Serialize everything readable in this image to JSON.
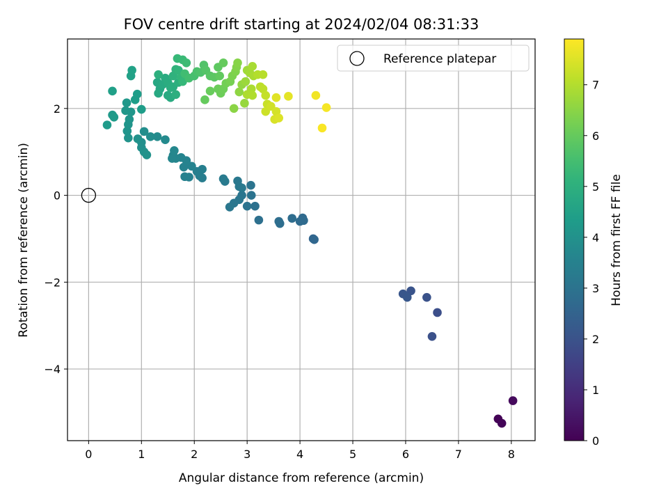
{
  "chart_data": {
    "type": "scatter",
    "title": "FOV centre drift starting at 2024/02/04 08:31:33",
    "xlabel": "Angular distance from reference (arcmin)",
    "ylabel": "Rotation from reference (arcmin)",
    "xlim": [
      -0.4,
      8.45
    ],
    "ylim": [
      -5.65,
      3.6
    ],
    "xticks": [
      0,
      1,
      2,
      3,
      4,
      5,
      6,
      7,
      8
    ],
    "xtick_labels": [
      "0",
      "1",
      "2",
      "3",
      "4",
      "5",
      "6",
      "7",
      "8"
    ],
    "yticks": [
      -4,
      -2,
      0,
      2
    ],
    "ytick_labels": [
      "−4",
      "−2",
      "0",
      "2"
    ],
    "grid": true,
    "legend": {
      "placement": "upper right",
      "entries": [
        "Reference platepar"
      ]
    },
    "reference_point": {
      "x": 0,
      "y": 0
    },
    "colorbar": {
      "label": "Hours from first FF file",
      "range": [
        0,
        7.9
      ],
      "ticks": [
        0,
        1,
        2,
        3,
        4,
        5,
        6,
        7
      ],
      "tick_labels": [
        "0",
        "1",
        "2",
        "3",
        "4",
        "5",
        "6",
        "7"
      ],
      "colormap": "viridis"
    },
    "points": [
      {
        "x": 7.75,
        "y": -5.15,
        "t": 0.05
      },
      {
        "x": 7.82,
        "y": -5.25,
        "t": 0.1
      },
      {
        "x": 8.03,
        "y": -4.73,
        "t": 0.2
      },
      {
        "x": 6.5,
        "y": -3.25,
        "t": 1.95
      },
      {
        "x": 6.6,
        "y": -2.7,
        "t": 1.9
      },
      {
        "x": 6.4,
        "y": -2.35,
        "t": 2.0
      },
      {
        "x": 6.1,
        "y": -2.2,
        "t": 2.05
      },
      {
        "x": 5.95,
        "y": -2.27,
        "t": 2.1
      },
      {
        "x": 6.03,
        "y": -2.35,
        "t": 2.15
      },
      {
        "x": 4.25,
        "y": -1.0,
        "t": 2.55
      },
      {
        "x": 4.27,
        "y": -1.02,
        "t": 2.6
      },
      {
        "x": 4.05,
        "y": -0.52,
        "t": 2.7
      },
      {
        "x": 4.07,
        "y": -0.58,
        "t": 2.72
      },
      {
        "x": 4.0,
        "y": -0.6,
        "t": 2.75
      },
      {
        "x": 3.85,
        "y": -0.53,
        "t": 2.8
      },
      {
        "x": 3.6,
        "y": -0.6,
        "t": 2.82
      },
      {
        "x": 3.62,
        "y": -0.65,
        "t": 2.85
      },
      {
        "x": 3.22,
        "y": -0.57,
        "t": 2.9
      },
      {
        "x": 3.15,
        "y": -0.25,
        "t": 2.95
      },
      {
        "x": 3.0,
        "y": -0.25,
        "t": 3.0
      },
      {
        "x": 3.08,
        "y": 0.0,
        "t": 3.02
      },
      {
        "x": 3.07,
        "y": 0.23,
        "t": 3.05
      },
      {
        "x": 2.9,
        "y": 0.0,
        "t": 3.08
      },
      {
        "x": 2.85,
        "y": -0.1,
        "t": 3.1
      },
      {
        "x": 2.75,
        "y": -0.18,
        "t": 3.12
      },
      {
        "x": 2.67,
        "y": -0.27,
        "t": 3.15
      },
      {
        "x": 2.82,
        "y": 0.33,
        "t": 3.18
      },
      {
        "x": 2.85,
        "y": 0.2,
        "t": 3.2
      },
      {
        "x": 2.9,
        "y": 0.17,
        "t": 3.22
      },
      {
        "x": 2.58,
        "y": 0.32,
        "t": 3.25
      },
      {
        "x": 2.55,
        "y": 0.38,
        "t": 3.28
      },
      {
        "x": 2.15,
        "y": 0.4,
        "t": 3.35
      },
      {
        "x": 2.1,
        "y": 0.45,
        "t": 3.38
      },
      {
        "x": 2.15,
        "y": 0.6,
        "t": 3.4
      },
      {
        "x": 2.05,
        "y": 0.55,
        "t": 3.42
      },
      {
        "x": 1.9,
        "y": 0.42,
        "t": 3.45
      },
      {
        "x": 1.82,
        "y": 0.43,
        "t": 3.48
      },
      {
        "x": 1.95,
        "y": 0.67,
        "t": 3.5
      },
      {
        "x": 1.8,
        "y": 0.65,
        "t": 3.52
      },
      {
        "x": 1.85,
        "y": 0.8,
        "t": 3.55
      },
      {
        "x": 1.75,
        "y": 0.87,
        "t": 3.58
      },
      {
        "x": 1.65,
        "y": 0.85,
        "t": 3.6
      },
      {
        "x": 1.6,
        "y": 0.92,
        "t": 3.62
      },
      {
        "x": 1.58,
        "y": 0.85,
        "t": 3.65
      },
      {
        "x": 1.62,
        "y": 1.03,
        "t": 3.68
      },
      {
        "x": 1.45,
        "y": 1.28,
        "t": 3.75
      },
      {
        "x": 1.3,
        "y": 1.35,
        "t": 3.8
      },
      {
        "x": 1.17,
        "y": 1.35,
        "t": 3.85
      },
      {
        "x": 1.05,
        "y": 1.47,
        "t": 3.9
      },
      {
        "x": 1.0,
        "y": 1.22,
        "t": 3.92
      },
      {
        "x": 1.0,
        "y": 1.1,
        "t": 3.95
      },
      {
        "x": 1.05,
        "y": 1.0,
        "t": 3.98
      },
      {
        "x": 1.1,
        "y": 0.93,
        "t": 4.0
      },
      {
        "x": 0.93,
        "y": 1.3,
        "t": 4.02
      },
      {
        "x": 0.75,
        "y": 1.32,
        "t": 4.05
      },
      {
        "x": 0.73,
        "y": 1.48,
        "t": 4.08
      },
      {
        "x": 0.75,
        "y": 1.63,
        "t": 4.1
      },
      {
        "x": 0.77,
        "y": 1.75,
        "t": 4.12
      },
      {
        "x": 0.8,
        "y": 1.92,
        "t": 4.15
      },
      {
        "x": 0.7,
        "y": 1.95,
        "t": 4.18
      },
      {
        "x": 0.72,
        "y": 2.13,
        "t": 4.2
      },
      {
        "x": 0.45,
        "y": 1.85,
        "t": 4.25
      },
      {
        "x": 0.48,
        "y": 1.8,
        "t": 4.28
      },
      {
        "x": 0.35,
        "y": 1.62,
        "t": 4.3
      },
      {
        "x": 1.0,
        "y": 1.98,
        "t": 4.35
      },
      {
        "x": 0.88,
        "y": 2.2,
        "t": 4.38
      },
      {
        "x": 0.92,
        "y": 2.33,
        "t": 4.4
      },
      {
        "x": 0.45,
        "y": 2.4,
        "t": 4.45
      },
      {
        "x": 0.8,
        "y": 2.75,
        "t": 4.5
      },
      {
        "x": 0.82,
        "y": 2.88,
        "t": 4.52
      },
      {
        "x": 1.3,
        "y": 2.6,
        "t": 4.7
      },
      {
        "x": 1.35,
        "y": 2.45,
        "t": 4.72
      },
      {
        "x": 1.32,
        "y": 2.35,
        "t": 4.75
      },
      {
        "x": 1.4,
        "y": 2.55,
        "t": 4.78
      },
      {
        "x": 1.5,
        "y": 2.3,
        "t": 4.8
      },
      {
        "x": 1.55,
        "y": 2.25,
        "t": 4.82
      },
      {
        "x": 1.45,
        "y": 2.7,
        "t": 4.85
      },
      {
        "x": 1.5,
        "y": 2.6,
        "t": 4.88
      },
      {
        "x": 1.55,
        "y": 2.48,
        "t": 4.9
      },
      {
        "x": 1.6,
        "y": 2.5,
        "t": 4.92
      },
      {
        "x": 1.65,
        "y": 2.32,
        "t": 4.95
      },
      {
        "x": 1.32,
        "y": 2.78,
        "t": 4.98
      },
      {
        "x": 1.7,
        "y": 2.6,
        "t": 5.0
      },
      {
        "x": 1.6,
        "y": 2.75,
        "t": 5.05
      },
      {
        "x": 1.65,
        "y": 2.9,
        "t": 5.1
      },
      {
        "x": 1.7,
        "y": 2.88,
        "t": 5.15
      },
      {
        "x": 1.75,
        "y": 2.72,
        "t": 5.2
      },
      {
        "x": 1.78,
        "y": 2.62,
        "t": 5.25
      },
      {
        "x": 1.68,
        "y": 3.15,
        "t": 5.3
      },
      {
        "x": 1.78,
        "y": 3.12,
        "t": 5.35
      },
      {
        "x": 1.85,
        "y": 3.05,
        "t": 5.4
      },
      {
        "x": 1.82,
        "y": 2.8,
        "t": 5.45
      },
      {
        "x": 1.9,
        "y": 2.7,
        "t": 5.5
      },
      {
        "x": 2.0,
        "y": 2.75,
        "t": 5.55
      },
      {
        "x": 2.05,
        "y": 2.85,
        "t": 5.6
      },
      {
        "x": 2.12,
        "y": 2.83,
        "t": 5.65
      },
      {
        "x": 2.18,
        "y": 3.0,
        "t": 5.7
      },
      {
        "x": 2.22,
        "y": 2.88,
        "t": 5.75
      },
      {
        "x": 2.3,
        "y": 2.75,
        "t": 5.8
      },
      {
        "x": 2.38,
        "y": 2.72,
        "t": 5.85
      },
      {
        "x": 2.45,
        "y": 2.95,
        "t": 5.9
      },
      {
        "x": 2.48,
        "y": 2.75,
        "t": 5.95
      },
      {
        "x": 2.55,
        "y": 3.05,
        "t": 6.0
      },
      {
        "x": 2.2,
        "y": 2.2,
        "t": 6.0
      },
      {
        "x": 2.3,
        "y": 2.4,
        "t": 6.05
      },
      {
        "x": 2.45,
        "y": 2.45,
        "t": 6.1
      },
      {
        "x": 2.5,
        "y": 2.35,
        "t": 6.12
      },
      {
        "x": 2.55,
        "y": 2.45,
        "t": 6.15
      },
      {
        "x": 2.6,
        "y": 2.58,
        "t": 6.2
      },
      {
        "x": 2.68,
        "y": 2.62,
        "t": 6.25
      },
      {
        "x": 2.72,
        "y": 2.75,
        "t": 6.3
      },
      {
        "x": 2.78,
        "y": 2.85,
        "t": 6.35
      },
      {
        "x": 2.8,
        "y": 2.95,
        "t": 6.4
      },
      {
        "x": 2.82,
        "y": 3.05,
        "t": 6.45
      },
      {
        "x": 2.75,
        "y": 2.0,
        "t": 6.5
      },
      {
        "x": 2.85,
        "y": 2.38,
        "t": 6.55
      },
      {
        "x": 2.9,
        "y": 2.55,
        "t": 6.6
      },
      {
        "x": 2.95,
        "y": 2.12,
        "t": 6.65
      },
      {
        "x": 2.97,
        "y": 2.62,
        "t": 6.7
      },
      {
        "x": 3.0,
        "y": 2.88,
        "t": 6.75
      },
      {
        "x": 3.05,
        "y": 2.82,
        "t": 6.8
      },
      {
        "x": 3.1,
        "y": 2.97,
        "t": 6.85
      },
      {
        "x": 3.12,
        "y": 2.75,
        "t": 6.88
      },
      {
        "x": 3.08,
        "y": 2.45,
        "t": 6.9
      },
      {
        "x": 3.0,
        "y": 2.32,
        "t": 6.92
      },
      {
        "x": 3.1,
        "y": 2.3,
        "t": 6.95
      },
      {
        "x": 3.2,
        "y": 2.78,
        "t": 7.0
      },
      {
        "x": 3.3,
        "y": 2.78,
        "t": 7.05
      },
      {
        "x": 3.25,
        "y": 2.5,
        "t": 7.1
      },
      {
        "x": 3.3,
        "y": 2.45,
        "t": 7.15
      },
      {
        "x": 3.35,
        "y": 2.3,
        "t": 7.2
      },
      {
        "x": 3.38,
        "y": 2.1,
        "t": 7.25
      },
      {
        "x": 3.35,
        "y": 1.93,
        "t": 7.3
      },
      {
        "x": 3.45,
        "y": 2.05,
        "t": 7.35
      },
      {
        "x": 3.55,
        "y": 1.93,
        "t": 7.4
      },
      {
        "x": 3.52,
        "y": 1.75,
        "t": 7.45
      },
      {
        "x": 3.6,
        "y": 1.78,
        "t": 7.5
      },
      {
        "x": 3.55,
        "y": 2.25,
        "t": 7.55
      },
      {
        "x": 3.78,
        "y": 2.28,
        "t": 7.6
      },
      {
        "x": 4.3,
        "y": 2.3,
        "t": 7.75
      },
      {
        "x": 4.5,
        "y": 2.02,
        "t": 7.8
      },
      {
        "x": 4.42,
        "y": 1.55,
        "t": 7.85
      }
    ]
  }
}
